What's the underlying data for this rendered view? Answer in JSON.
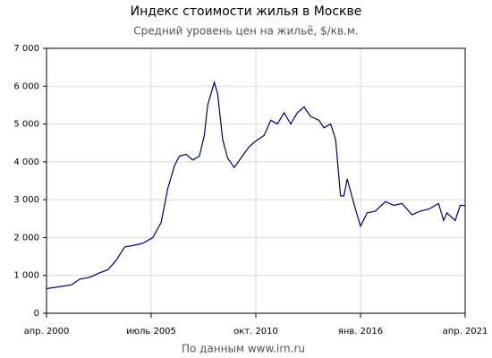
{
  "chart_data": {
    "type": "line",
    "title": "Индекс стоимости жилья в Москве",
    "subtitle": "Средний уровень цен на жильё, $/кв.м.",
    "source": "По данным www.irn.ru",
    "x": [
      "2000-04",
      "2001-07",
      "2001-12",
      "2002-06",
      "2002-11",
      "2003-05",
      "2003-10",
      "2004-03",
      "2004-09",
      "2005-02",
      "2005-08",
      "2006-01",
      "2006-05",
      "2006-09",
      "2006-12",
      "2007-04",
      "2007-08",
      "2007-12",
      "2008-03",
      "2008-05",
      "2008-09",
      "2008-11",
      "2009-02",
      "2009-05",
      "2009-09",
      "2010-01",
      "2010-06",
      "2010-10",
      "2011-03",
      "2011-07",
      "2011-11",
      "2012-03",
      "2012-07",
      "2012-11",
      "2013-03",
      "2013-07",
      "2013-12",
      "2014-03",
      "2014-07",
      "2014-10",
      "2015-01",
      "2015-03",
      "2015-05",
      "2015-09",
      "2016-01",
      "2016-05",
      "2016-10",
      "2017-04",
      "2017-09",
      "2018-02",
      "2018-08",
      "2019-01",
      "2019-06",
      "2019-12",
      "2020-03",
      "2020-05",
      "2020-10",
      "2021-01",
      "2021-04"
    ],
    "series": [
      {
        "color": "#000066",
        "values": [
          650,
          750,
          900,
          950,
          1050,
          1150,
          1400,
          1750,
          1800,
          1850,
          2000,
          2400,
          3300,
          3900,
          4150,
          4200,
          4050,
          4150,
          4700,
          5500,
          6100,
          5800,
          4600,
          4100,
          3850,
          4100,
          4400,
          4550,
          4700,
          5100,
          5000,
          5300,
          5000,
          5300,
          5450,
          5200,
          5100,
          4900,
          5000,
          4600,
          3100,
          3100,
          3550,
          2900,
          2300,
          2650,
          2700,
          2950,
          2850,
          2900,
          2600,
          2700,
          2750,
          2900,
          2450,
          2650,
          2450,
          2850,
          2850
        ]
      }
    ],
    "xlim": [
      "2000-04",
      "2021-04"
    ],
    "xticks": [
      {
        "value": "2000-04",
        "label": "апр. 2000"
      },
      {
        "value": "2005-07",
        "label": "июль 2005"
      },
      {
        "value": "2010-10",
        "label": "окт. 2010"
      },
      {
        "value": "2016-01",
        "label": "янв. 2016"
      },
      {
        "value": "2021-04",
        "label": "апр. 2021"
      }
    ],
    "ylim": [
      0,
      7000
    ],
    "yticks": [
      0,
      {
        "value": 1000,
        "label": "1 000"
      },
      {
        "value": 2000,
        "label": "2 000"
      },
      {
        "value": 3000,
        "label": "3 000"
      },
      {
        "value": 4000,
        "label": "4 000"
      },
      {
        "value": 5000,
        "label": "5 000"
      },
      {
        "value": 6000,
        "label": "6 000"
      },
      {
        "value": 7000,
        "label": "7 000"
      }
    ],
    "grid": true
  }
}
